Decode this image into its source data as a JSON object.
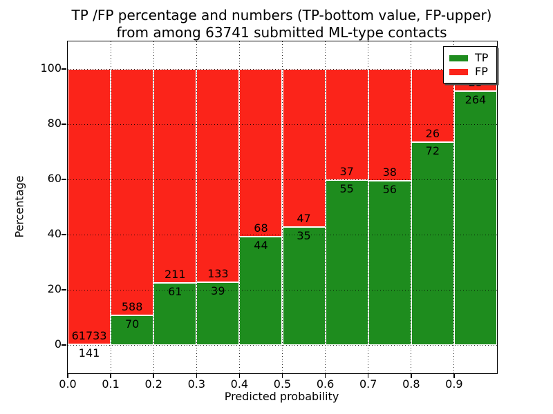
{
  "figure": {
    "title_line1": "TP /FP percentage and numbers (TP-bottom value, FP-upper)",
    "title_line2": "from among 63741 submitted ML-type contacts"
  },
  "chart_data": {
    "type": "bar",
    "stacked": true,
    "title": "TP /FP percentage and numbers (TP-bottom value, FP-upper) from among 63741 submitted ML-type contacts",
    "xlabel": "Predicted probability",
    "ylabel": "Percentage",
    "total_submitted": 63741,
    "bin_width": 0.1,
    "categories": [
      "0.0",
      "0.1",
      "0.2",
      "0.3",
      "0.4",
      "0.5",
      "0.6",
      "0.7",
      "0.8",
      "0.9"
    ],
    "xtick_labels": [
      "0.0",
      "0.1",
      "0.2",
      "0.3",
      "0.4",
      "0.5",
      "0.6",
      "0.7",
      "0.8",
      "0.9"
    ],
    "ytick_values": [
      0,
      20,
      40,
      60,
      80,
      100
    ],
    "ytick_labels": [
      "0",
      "20",
      "40",
      "60",
      "80",
      "100"
    ],
    "xlim": [
      0.0,
      1.0
    ],
    "ylim": [
      -10,
      110
    ],
    "grid": {
      "style": "dotted",
      "color": "#000000",
      "axisbelow": false
    },
    "bar_edge_color": "#ffffff",
    "series": [
      {
        "name": "TP",
        "color": "#1e8c1e",
        "values": [
          141,
          70,
          61,
          39,
          44,
          35,
          55,
          56,
          72,
          264
        ]
      },
      {
        "name": "FP",
        "color": "#fb241a",
        "values": [
          61733,
          588,
          211,
          133,
          68,
          47,
          37,
          38,
          26,
          23
        ]
      }
    ],
    "tp_percentages": [
      0.23,
      10.64,
      22.43,
      22.67,
      39.29,
      42.68,
      59.78,
      59.57,
      73.47,
      91.99
    ]
  },
  "legend": {
    "position": "upper right",
    "items": [
      {
        "label": "TP",
        "color": "#1e8c1e"
      },
      {
        "label": "FP",
        "color": "#fb241a"
      }
    ]
  }
}
